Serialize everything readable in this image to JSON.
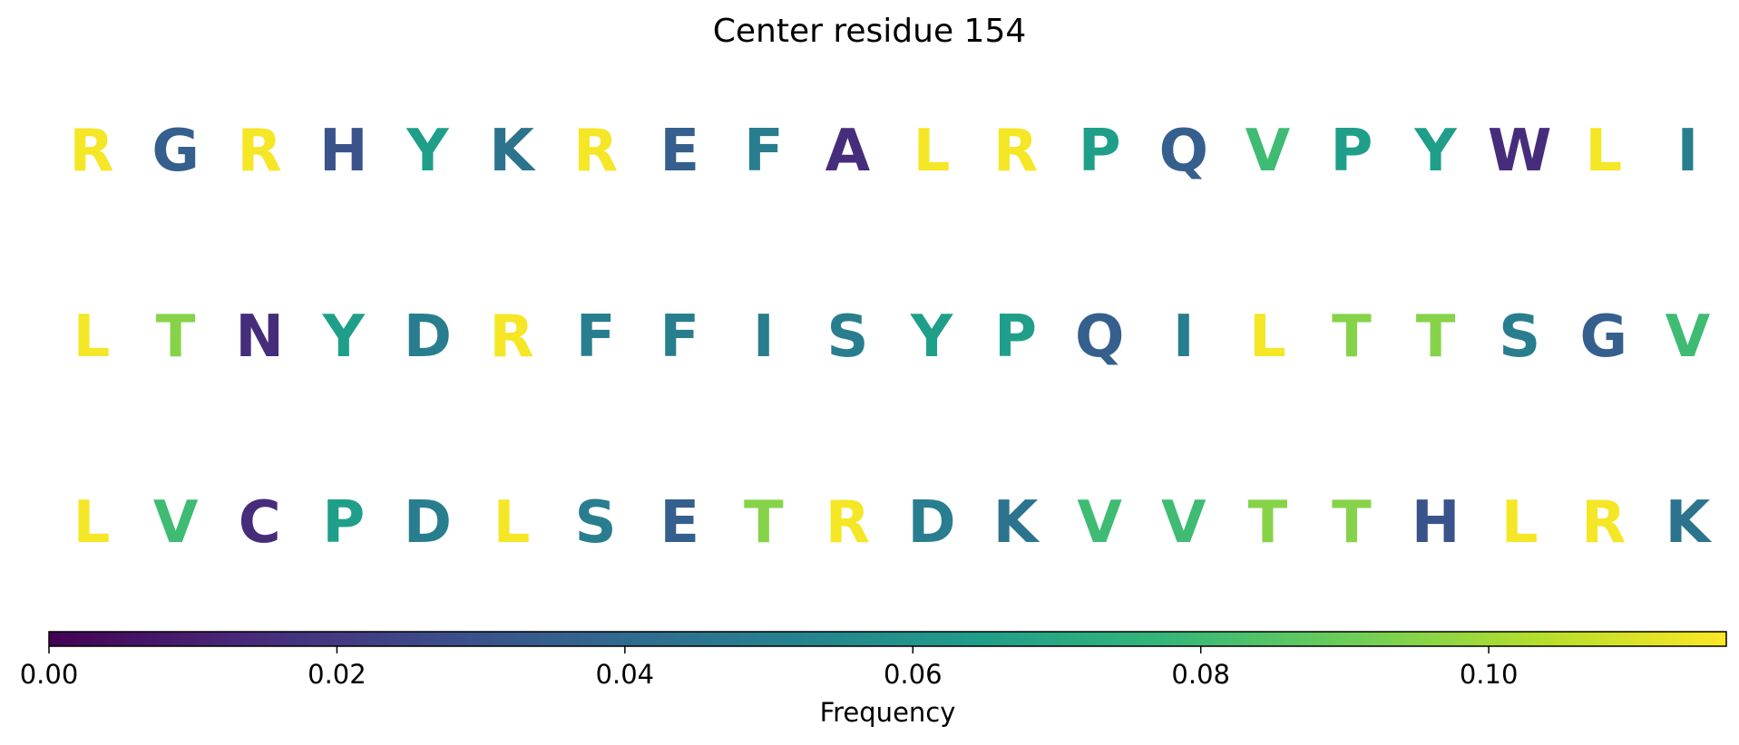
{
  "chart_data": {
    "type": "heatmap",
    "title": "Center residue 154",
    "rows": [
      {
        "letters": [
          "R",
          "G",
          "R",
          "H",
          "Y",
          "K",
          "R",
          "E",
          "F",
          "A",
          "L",
          "R",
          "P",
          "Q",
          "V",
          "P",
          "Y",
          "W",
          "L",
          "I"
        ],
        "values": [
          0.115,
          0.035,
          0.115,
          0.03,
          0.065,
          0.045,
          0.115,
          0.035,
          0.05,
          0.015,
          0.115,
          0.115,
          0.065,
          0.035,
          0.08,
          0.065,
          0.065,
          0.015,
          0.115,
          0.05
        ]
      },
      {
        "letters": [
          "L",
          "T",
          "N",
          "Y",
          "D",
          "R",
          "F",
          "F",
          "I",
          "S",
          "Y",
          "P",
          "Q",
          "I",
          "L",
          "T",
          "T",
          "S",
          "G",
          "V"
        ],
        "values": [
          0.115,
          0.095,
          0.015,
          0.065,
          0.05,
          0.115,
          0.05,
          0.05,
          0.05,
          0.05,
          0.065,
          0.065,
          0.035,
          0.05,
          0.115,
          0.095,
          0.095,
          0.05,
          0.035,
          0.08
        ]
      },
      {
        "letters": [
          "L",
          "V",
          "C",
          "P",
          "D",
          "L",
          "S",
          "E",
          "T",
          "R",
          "D",
          "K",
          "V",
          "V",
          "T",
          "T",
          "H",
          "L",
          "R",
          "K"
        ],
        "values": [
          0.115,
          0.08,
          0.015,
          0.065,
          0.05,
          0.115,
          0.05,
          0.035,
          0.095,
          0.115,
          0.05,
          0.045,
          0.08,
          0.08,
          0.095,
          0.095,
          0.03,
          0.115,
          0.115,
          0.045
        ]
      }
    ],
    "colormap": "viridis",
    "colorbar": {
      "label": "Frequency",
      "min": 0.0,
      "max": 0.1165,
      "ticks": [
        0.0,
        0.02,
        0.04,
        0.06,
        0.08,
        0.1
      ],
      "tick_labels": [
        "0.00",
        "0.02",
        "0.04",
        "0.06",
        "0.08",
        "0.10"
      ]
    }
  }
}
